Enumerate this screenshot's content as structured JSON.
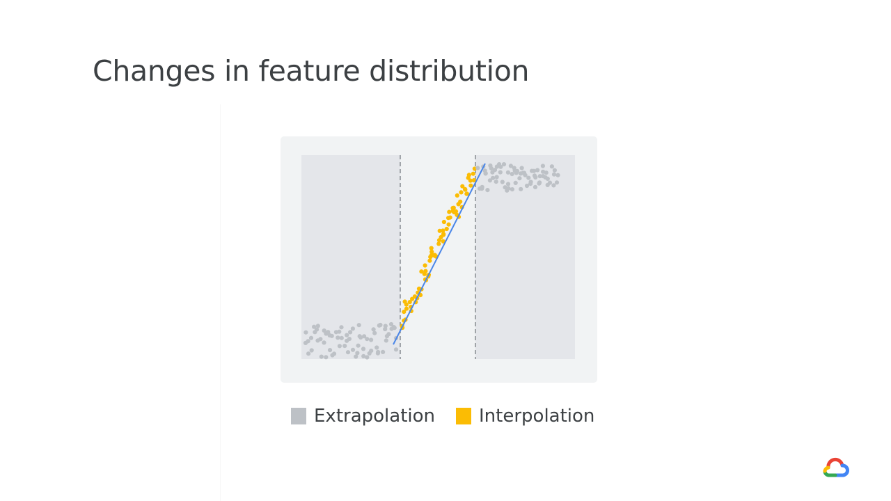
{
  "slide": {
    "title": "Changes in feature distribution"
  },
  "legend": {
    "items": [
      {
        "label": "Extrapolation",
        "color": "#bdc1c6"
      },
      {
        "label": "Interpolation",
        "color": "#fbbc04"
      }
    ]
  },
  "diagram": {
    "colors": {
      "panel_background": "#f1f3f4",
      "extrapolation_region": "#e4e6ea",
      "extrapolation_points": "#bdc1c6",
      "interpolation_points": "#fbbc04",
      "fit_line": "#4a86e8",
      "boundary_lines": "#80868b"
    },
    "regions": [
      "extrapolation",
      "interpolation",
      "extrapolation"
    ],
    "fit_line_style": "solid",
    "boundary_style": "dashed"
  },
  "logo": {
    "icon": "google-cloud-icon",
    "colors": [
      "#ea4335",
      "#4285f4",
      "#34a853",
      "#fbbc04"
    ]
  }
}
